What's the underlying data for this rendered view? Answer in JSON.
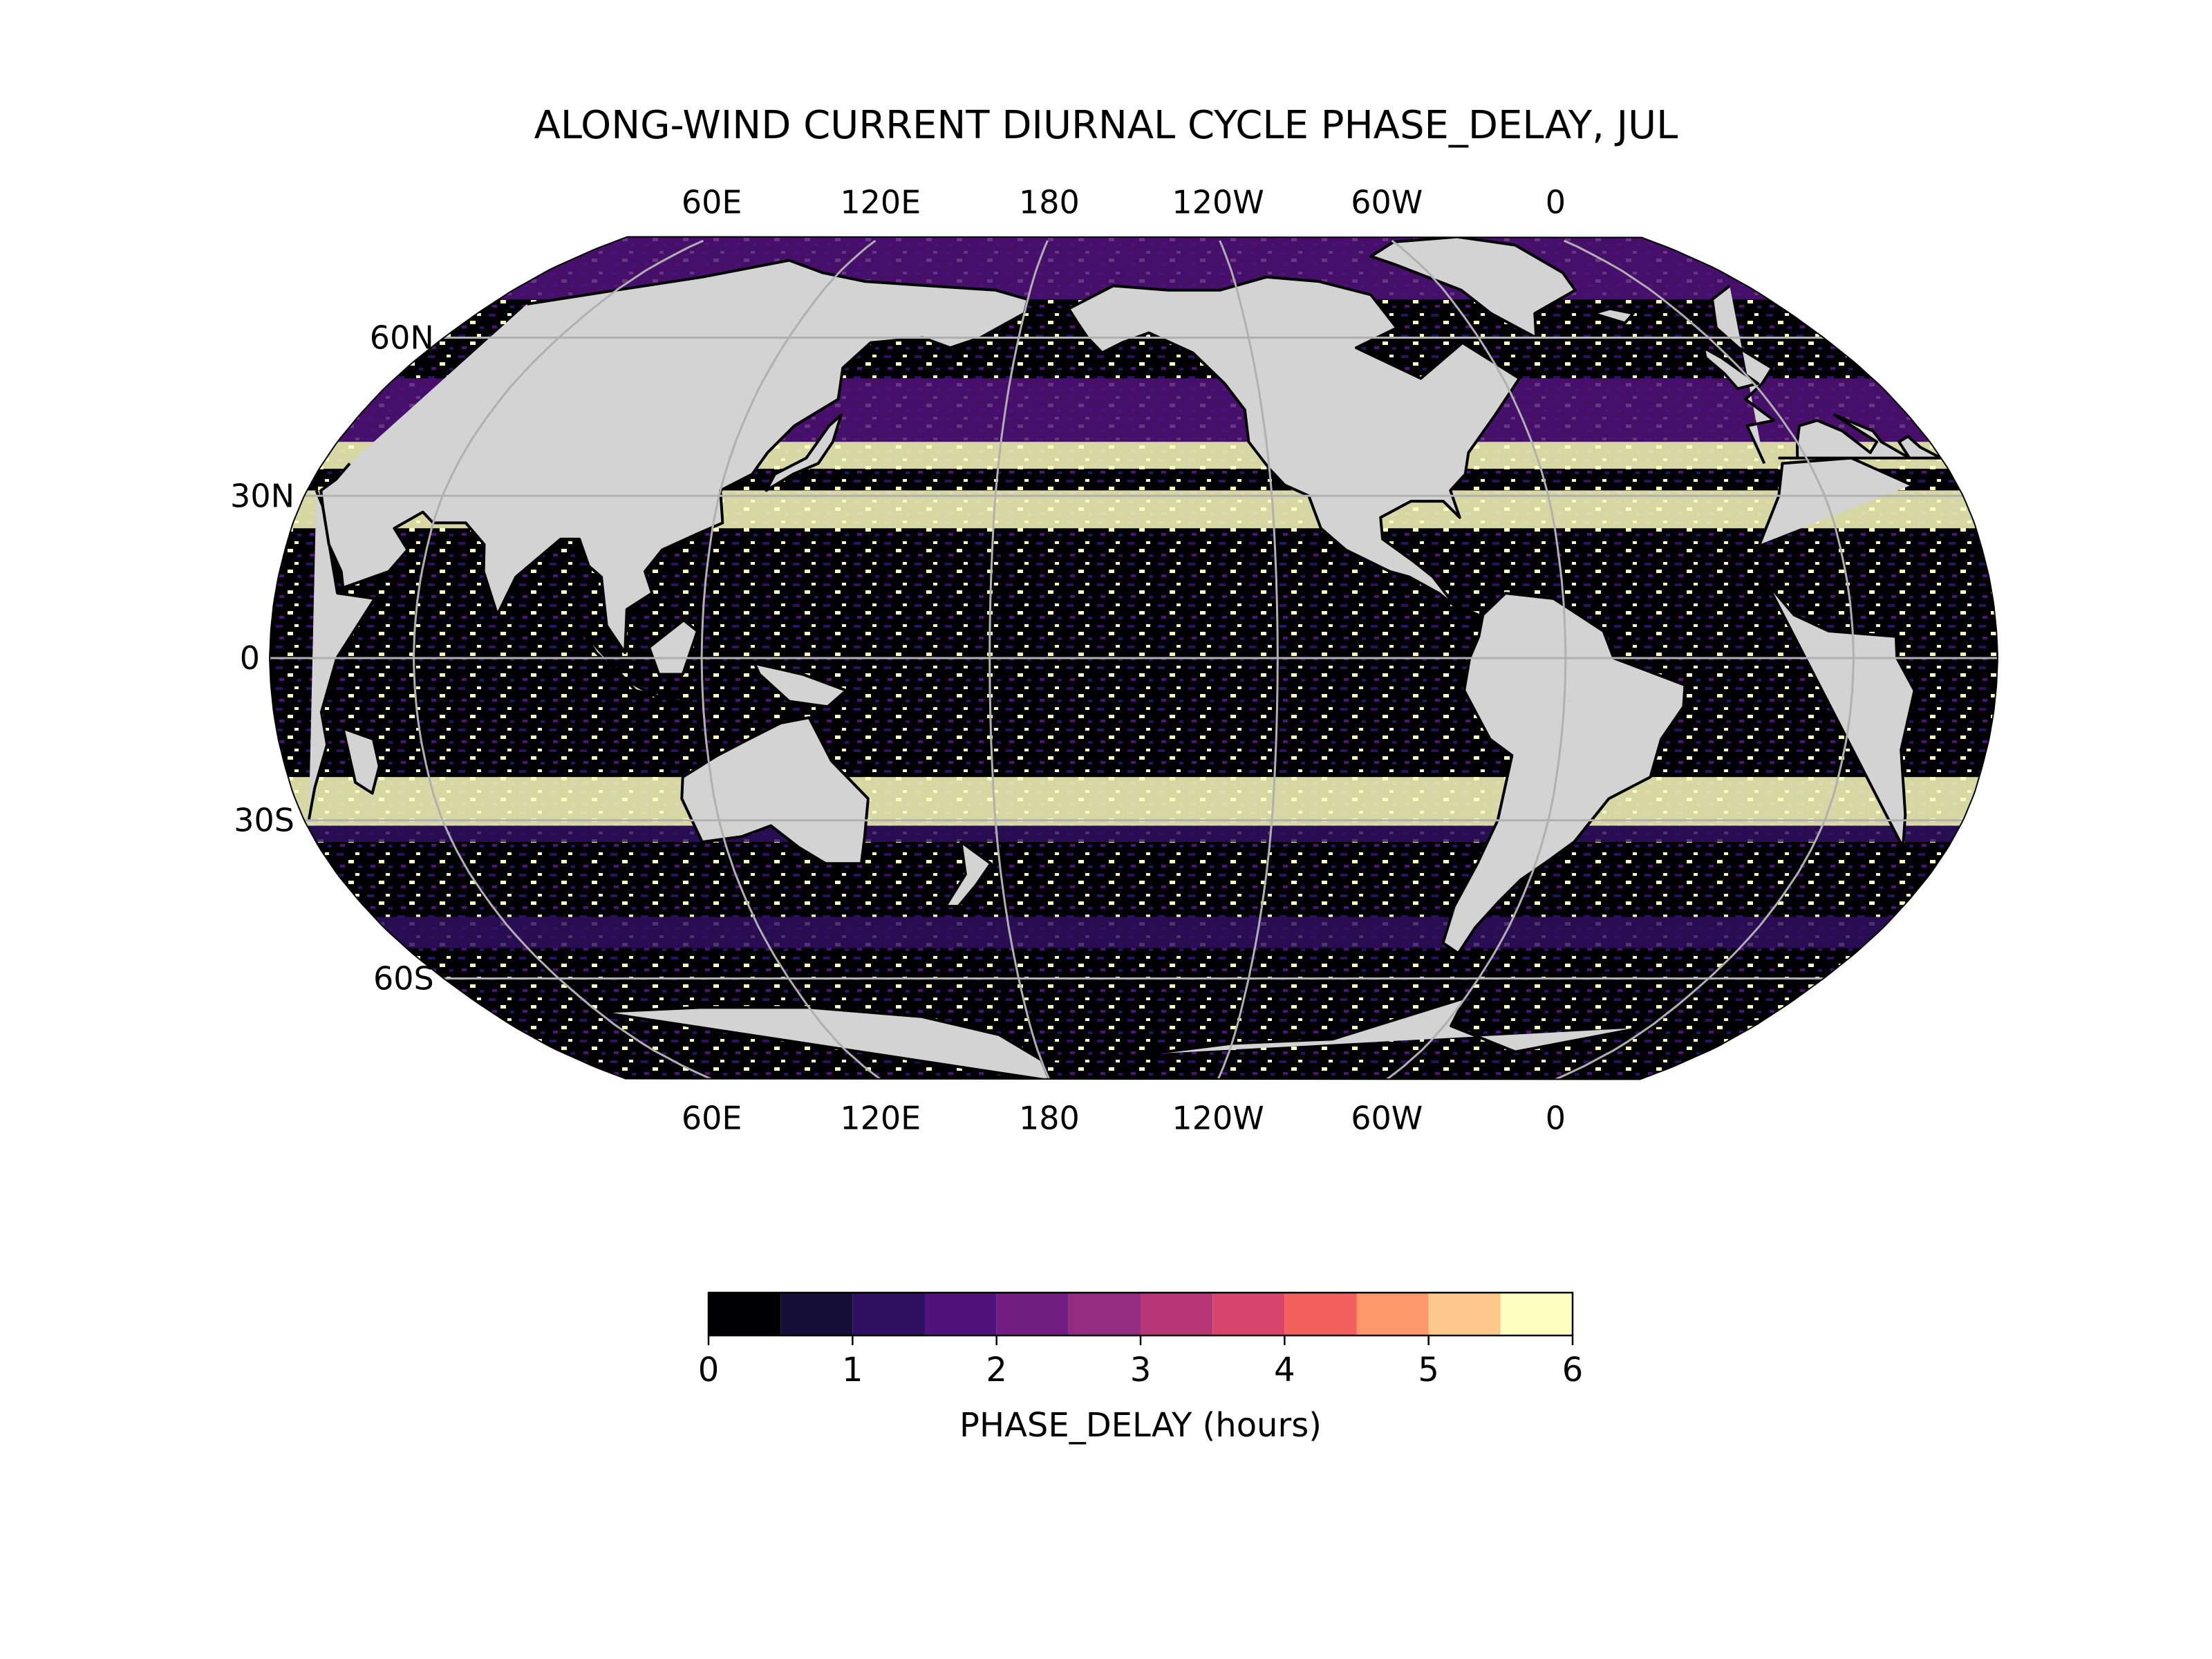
{
  "chart_data": {
    "type": "heatmap",
    "title": "ALONG-WIND CURRENT DIURNAL CYCLE PHASE_DELAY, JUL",
    "projection": "robinson",
    "central_longitude": -150,
    "grid": true,
    "lon_ticks": [
      {
        "lon": 60,
        "label": "60E"
      },
      {
        "lon": 120,
        "label": "120E"
      },
      {
        "lon": 180,
        "label": "180"
      },
      {
        "lon": -120,
        "label": "120W"
      },
      {
        "lon": -60,
        "label": "60W"
      },
      {
        "lon": 0,
        "label": "0"
      }
    ],
    "lat_ticks": [
      {
        "lat": 60,
        "label": "60N"
      },
      {
        "lat": 30,
        "label": "30N"
      },
      {
        "lat": 0,
        "label": "0"
      },
      {
        "lat": -30,
        "label": "30S"
      },
      {
        "lat": -60,
        "label": "60S"
      }
    ],
    "colorbar": {
      "label": "PHASE_DELAY (hours)",
      "placement": "bottom",
      "range": [
        0,
        6
      ],
      "tick_values": [
        0,
        1,
        2,
        3,
        4,
        5,
        6
      ],
      "tick_labels": [
        "0",
        "1",
        "2",
        "3",
        "4",
        "5",
        "6"
      ],
      "bins": [
        {
          "from": 0.0,
          "to": 0.5,
          "color": "#000004"
        },
        {
          "from": 0.5,
          "to": 1.0,
          "color": "#150e37"
        },
        {
          "from": 1.0,
          "to": 1.5,
          "color": "#2f0f60"
        },
        {
          "from": 1.5,
          "to": 2.0,
          "color": "#51127c"
        },
        {
          "from": 2.0,
          "to": 2.5,
          "color": "#721f81"
        },
        {
          "from": 2.5,
          "to": 3.0,
          "color": "#942c80"
        },
        {
          "from": 3.0,
          "to": 3.5,
          "color": "#b73779"
        },
        {
          "from": 3.5,
          "to": 4.0,
          "color": "#d8456c"
        },
        {
          "from": 4.0,
          "to": 4.5,
          "color": "#f1605d"
        },
        {
          "from": 4.5,
          "to": 5.0,
          "color": "#fd9668"
        },
        {
          "from": 5.0,
          "to": 5.5,
          "color": "#fec98d"
        },
        {
          "from": 5.5,
          "to": 6.0,
          "color": "#fcfdbf"
        }
      ]
    },
    "land_color": "#d3d3d3",
    "gridline_color": "#b0b0b0"
  }
}
